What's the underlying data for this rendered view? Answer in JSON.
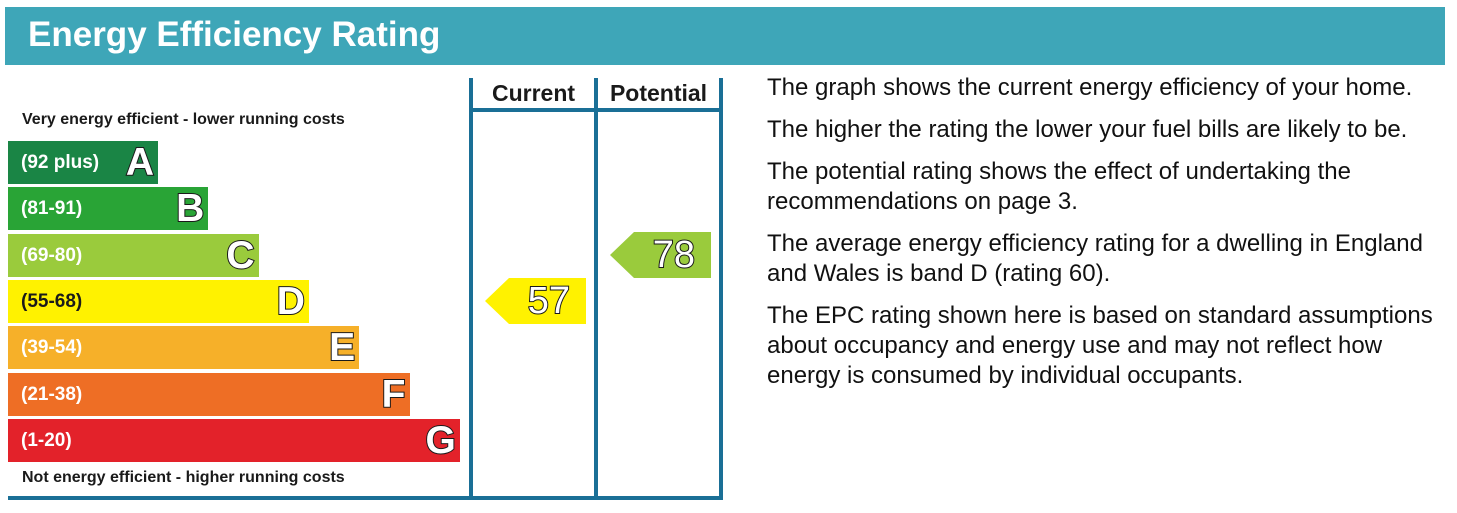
{
  "header": {
    "title": "Energy Efficiency Rating"
  },
  "captions": {
    "top": "Very energy efficient - lower running costs",
    "bottom": "Not energy efficient - higher running costs"
  },
  "columns": {
    "current": "Current",
    "potential": "Potential"
  },
  "chart_data": {
    "type": "bar",
    "categories": [
      "A",
      "B",
      "C",
      "D",
      "E",
      "F",
      "G"
    ],
    "bands": [
      {
        "letter": "A",
        "range": "(92 plus)",
        "color": "#1a8545"
      },
      {
        "letter": "B",
        "range": "(81-91)",
        "color": "#29a436"
      },
      {
        "letter": "C",
        "range": "(69-80)",
        "color": "#9acb3c"
      },
      {
        "letter": "D",
        "range": "(55-68)",
        "color": "#fff200"
      },
      {
        "letter": "E",
        "range": "(39-54)",
        "color": "#f6b029"
      },
      {
        "letter": "F",
        "range": "(21-38)",
        "color": "#ee6e25"
      },
      {
        "letter": "G",
        "range": "(1-20)",
        "color": "#e3222a"
      }
    ],
    "ratings": {
      "current": {
        "value": 57,
        "band": "D",
        "color": "#fff200"
      },
      "potential": {
        "value": 78,
        "band": "C",
        "color": "#9acb3c"
      }
    }
  },
  "info": [
    "The graph shows the current energy efficiency of your home.",
    "The higher the rating the lower your fuel bills are likely to be.",
    "The potential rating shows the effect of undertaking the recommendations on page 3.",
    "The average energy efficiency rating for a dwelling in England and Wales is band D (rating 60).",
    "The EPC rating shown here is based on standard assumptions about occupancy and energy use and may not reflect how energy is consumed by individual occupants."
  ]
}
